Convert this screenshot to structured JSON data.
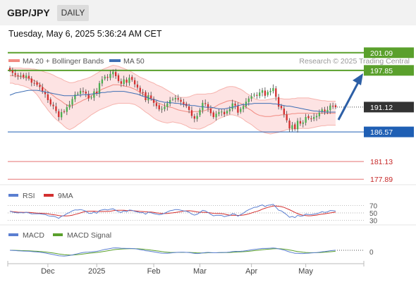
{
  "header": {
    "symbol": "GBP/JPY",
    "timeframe": "DAILY"
  },
  "timestamp": "Tuesday, May 6, 2025 5:36:24 AM CET",
  "legend": {
    "bollinger": "MA 20 + Bollinger Bands",
    "ma50": "MA 50",
    "credit": "Research © 2025 Trading Central"
  },
  "rsi_legend": {
    "rsi": "RSI",
    "ma9": "9MA"
  },
  "macd_legend": {
    "macd": "MACD",
    "signal": "MACD Signal"
  },
  "colors": {
    "up": "#4caf50",
    "down": "#d32f2f",
    "ma50": "#3f6fb5",
    "bollinger": "#f28b82",
    "bandFill": "#fde3e3",
    "resistance": "#5aa02c",
    "support": "#1f5fb4",
    "lowSupport": "#e57373",
    "price": "#333333"
  },
  "chart_data": [
    {
      "type": "candlestick",
      "x_ticks": [
        "Dec",
        "2025",
        "Feb",
        "Mar",
        "Apr",
        "May"
      ],
      "price_levels": [
        {
          "value": 201.09,
          "label": "201.09",
          "kind": "resistance"
        },
        {
          "value": 197.85,
          "label": "197.85",
          "kind": "resistance"
        },
        {
          "value": 191.12,
          "label": "191.12",
          "kind": "current"
        },
        {
          "value": 186.57,
          "label": "186.57",
          "kind": "support"
        },
        {
          "value": 181.13,
          "label": "181.13",
          "kind": "support-text"
        },
        {
          "value": 177.89,
          "label": "177.89",
          "kind": "support-text"
        }
      ],
      "ylim": [
        176.5,
        203
      ],
      "closes": [
        197.9,
        197.4,
        197.0,
        196.8,
        196.9,
        196.6,
        196.9,
        196.4,
        195.6,
        195.5,
        195.2,
        194.8,
        194.0,
        193.5,
        192.4,
        191.6,
        191.3,
        190.4,
        189.3,
        190.2,
        190.3,
        191.1,
        191.6,
        192.6,
        193.4,
        193.6,
        194.1,
        194.0,
        193.6,
        192.7,
        192.9,
        194.0,
        193.6,
        195.5,
        196.2,
        196.7,
        196.5,
        197.2,
        197.6,
        196.8,
        195.9,
        195.4,
        196.2,
        195.6,
        196.5,
        196.1,
        195.3,
        194.7,
        193.9,
        193.7,
        192.4,
        193.3,
        192.7,
        191.9,
        191.3,
        190.7,
        190.8,
        191.2,
        191.8,
        192.4,
        192.6,
        192.8,
        192.5,
        192.1,
        191.6,
        191.3,
        190.6,
        189.5,
        189.0,
        189.5,
        190.6,
        191.9,
        191.7,
        190.9,
        190.0,
        189.3,
        189.9,
        190.2,
        190.3,
        189.8,
        190.4,
        190.8,
        191.8,
        191.4,
        190.1,
        190.8,
        191.3,
        192.1,
        192.7,
        193.1,
        193.4,
        193.2,
        193.8,
        194.2,
        193.2,
        193.9,
        194.1,
        194.6,
        193.0,
        191.2,
        190.9,
        189.8,
        188.7,
        187.2,
        187.8,
        187.1,
        188.6,
        188.1,
        188.3,
        189.3,
        189.1,
        189.0,
        189.3,
        189.5,
        190.1,
        190.7,
        190.3,
        190.6,
        191.4,
        191.3,
        191.1
      ],
      "ma50": [
        193.3,
        193.5,
        193.7,
        193.8,
        193.9,
        194.0,
        194.1,
        194.2,
        194.2,
        194.2,
        194.2,
        194.1,
        194.0,
        193.9,
        193.8,
        193.7,
        193.6,
        193.5,
        193.4,
        193.3,
        193.2,
        193.2,
        193.2,
        193.2,
        193.2,
        193.3,
        193.3,
        193.4,
        193.4,
        193.4,
        193.5,
        193.6,
        193.6,
        193.7,
        193.8,
        193.8,
        193.9,
        193.9,
        194.0,
        194.0,
        194.0,
        194.0,
        194.0,
        193.9,
        193.8,
        193.7,
        193.6,
        193.5,
        193.3,
        193.1,
        193.0,
        192.8,
        192.6,
        192.5,
        192.4,
        192.2,
        192.1,
        192.0,
        192.0,
        191.9,
        191.9,
        191.8,
        191.8,
        191.7,
        191.6,
        191.5,
        191.5,
        191.4,
        191.4,
        191.3,
        191.2,
        191.2,
        191.1,
        191.1,
        191.1,
        191.0,
        190.9,
        190.8,
        190.8,
        190.8,
        190.9,
        191.0,
        191.1,
        191.2,
        191.4,
        191.5,
        191.6,
        191.6,
        191.7,
        191.7,
        191.8,
        191.8,
        191.8,
        191.8,
        191.8,
        191.8,
        191.8,
        191.7,
        191.7,
        191.6,
        191.5,
        191.4,
        191.3,
        191.3,
        191.2,
        191.1,
        191.0,
        190.9,
        190.8,
        190.7,
        190.6,
        190.5,
        190.4,
        190.4,
        190.3,
        190.3,
        190.2,
        190.2,
        190.2,
        190.2,
        190.2
      ],
      "ma20": [
        196.9,
        196.9,
        196.8,
        196.8,
        196.7,
        196.6,
        196.5,
        196.4,
        196.2,
        196.0,
        195.7,
        195.3,
        194.8,
        194.4,
        194.0,
        193.6,
        193.2,
        192.8,
        192.5,
        192.2,
        191.8,
        191.5,
        191.3,
        191.4,
        191.6,
        191.9,
        192.1,
        192.4,
        192.6,
        192.9,
        193.2,
        193.5,
        193.8,
        194.1,
        194.4,
        194.6,
        194.8,
        195.0,
        195.2,
        195.2,
        195.2,
        195.1,
        195.0,
        194.9,
        194.8,
        194.6,
        194.4,
        194.1,
        193.8,
        193.5,
        193.2,
        192.9,
        192.6,
        192.3,
        192.0,
        191.8,
        191.6,
        191.4,
        191.2,
        191.1,
        191.0,
        190.8,
        190.6,
        190.5,
        190.4,
        190.3,
        190.2,
        190.2,
        190.3,
        190.3,
        190.3,
        190.4,
        190.5,
        190.7,
        190.8,
        191.0,
        191.3,
        191.6,
        191.8,
        192.0,
        192.2,
        192.3,
        192.3,
        192.2,
        192.0,
        191.8,
        191.5,
        191.1,
        190.8,
        190.5,
        190.1,
        189.8,
        189.6,
        189.5,
        189.4,
        189.4,
        189.4,
        189.5,
        189.6,
        189.6,
        189.7,
        189.7,
        189.8,
        189.8,
        189.9,
        189.9,
        190.0,
        190.0,
        190.0,
        190.0,
        190.0,
        190.0,
        190.0,
        190.0,
        190.0,
        190.0,
        190.0,
        190.0,
        190.0,
        190.0,
        190.0
      ],
      "bb_width": [
        1.4,
        1.4,
        1.5,
        1.5,
        1.6,
        1.6,
        1.7,
        1.8,
        1.9,
        2.1,
        2.3,
        2.6,
        2.9,
        3.1,
        3.4,
        3.6,
        3.8,
        3.9,
        4.0,
        4.1,
        4.2,
        4.3,
        4.3,
        4.2,
        4.1,
        4.0,
        3.9,
        3.8,
        3.7,
        3.6,
        3.5,
        3.5,
        3.5,
        3.5,
        3.6,
        3.6,
        3.6,
        3.6,
        3.6,
        3.5,
        3.4,
        3.3,
        3.2,
        3.1,
        3.0,
        2.9,
        2.8,
        2.8,
        2.8,
        2.9,
        3.0,
        3.0,
        3.1,
        3.2,
        3.2,
        3.2,
        3.2,
        3.1,
        3.0,
        2.8,
        2.6,
        2.5,
        2.4,
        2.4,
        2.5,
        2.6,
        2.8,
        3.0,
        3.1,
        3.2,
        3.2,
        3.1,
        3.0,
        2.9,
        2.8,
        2.7,
        2.6,
        2.6,
        2.6,
        2.6,
        2.6,
        2.6,
        2.6,
        2.6,
        2.6,
        2.6,
        2.6,
        2.6,
        2.6,
        2.6,
        2.6,
        2.7,
        2.8,
        2.9,
        3.0,
        3.1,
        3.2,
        3.2,
        3.2,
        3.1,
        3.0,
        2.9,
        2.8,
        2.8,
        2.8,
        2.8,
        2.8,
        2.8,
        2.8,
        2.8,
        2.8,
        2.7,
        2.6,
        2.5,
        2.4,
        2.3,
        2.3,
        2.2,
        2.2,
        2.2,
        2.2
      ],
      "rsi": {
        "levels": [
          "70",
          "50",
          "30"
        ],
        "ylim": [
          20,
          80
        ]
      },
      "macd": {
        "zero_label": "0"
      }
    }
  ]
}
